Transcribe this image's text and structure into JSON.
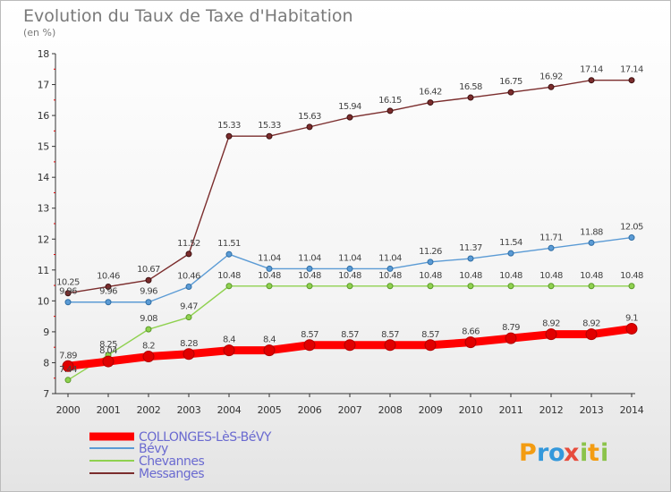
{
  "chart_data": {
    "type": "line",
    "title": "Evolution du Taux de Taxe d'Habitation",
    "subtitle": "(en %)",
    "x": [
      "2000",
      "2001",
      "2002",
      "2003",
      "2004",
      "2005",
      "2006",
      "2007",
      "2008",
      "2009",
      "2010",
      "2011",
      "2012",
      "2013",
      "2014"
    ],
    "ylim": [
      7,
      18
    ],
    "yticks": [
      7,
      8,
      9,
      10,
      11,
      12,
      13,
      14,
      15,
      16,
      17,
      18
    ],
    "grid": false,
    "legend_position": "bottom-left",
    "series": [
      {
        "name": "COLLONGES-LèS-BéVY",
        "color": "#ff0000",
        "values": [
          7.89,
          8.04,
          8.2,
          8.28,
          8.4,
          8.4,
          8.57,
          8.57,
          8.57,
          8.57,
          8.66,
          8.79,
          8.92,
          8.92,
          9.1
        ],
        "labels": [
          "7.89",
          "8.04",
          "8.2",
          "8.28",
          "8.4",
          "8.4",
          "8.57",
          "8.57",
          "8.57",
          "8.57",
          "8.66",
          "8.79",
          "8.92",
          "8.92",
          "9.1"
        ]
      },
      {
        "name": "Bévy",
        "color": "#5b9bd5",
        "values": [
          9.96,
          9.96,
          9.96,
          10.46,
          11.51,
          11.04,
          11.04,
          11.04,
          11.04,
          11.26,
          11.37,
          11.54,
          11.71,
          11.88,
          12.05
        ],
        "labels": [
          "9.96",
          "9.96",
          "9.96",
          "10.46",
          "11.51",
          "11.04",
          "11.04",
          "11.04",
          "11.04",
          "11.26",
          "11.37",
          "11.54",
          "11.71",
          "11.88",
          "12.05"
        ]
      },
      {
        "name": "Chevannes",
        "color": "#8fd14f",
        "values": [
          7.44,
          8.25,
          9.08,
          9.47,
          10.48,
          10.48,
          10.48,
          10.48,
          10.48,
          10.48,
          10.48,
          10.48,
          10.48,
          10.48,
          10.48
        ],
        "labels": [
          "7.44",
          "8.25",
          "9.08",
          "9.47",
          "10.48",
          "10.48",
          "10.48",
          "10.48",
          "10.48",
          "10.48",
          "10.48",
          "10.48",
          "10.48",
          "10.48",
          "10.48"
        ]
      },
      {
        "name": "Messanges",
        "color": "#7b2d2d",
        "values": [
          10.25,
          10.46,
          10.67,
          11.52,
          15.33,
          15.33,
          15.63,
          15.94,
          16.15,
          16.42,
          16.58,
          16.75,
          16.92,
          17.14,
          17.14
        ],
        "labels": [
          "10.25",
          "10.46",
          "10.67",
          "11.52",
          "15.33",
          "15.33",
          "15.63",
          "15.94",
          "16.15",
          "16.42",
          "16.58",
          "16.75",
          "16.92",
          "17.14",
          "17.14"
        ]
      }
    ]
  },
  "logo": {
    "text": "Proxiti"
  }
}
